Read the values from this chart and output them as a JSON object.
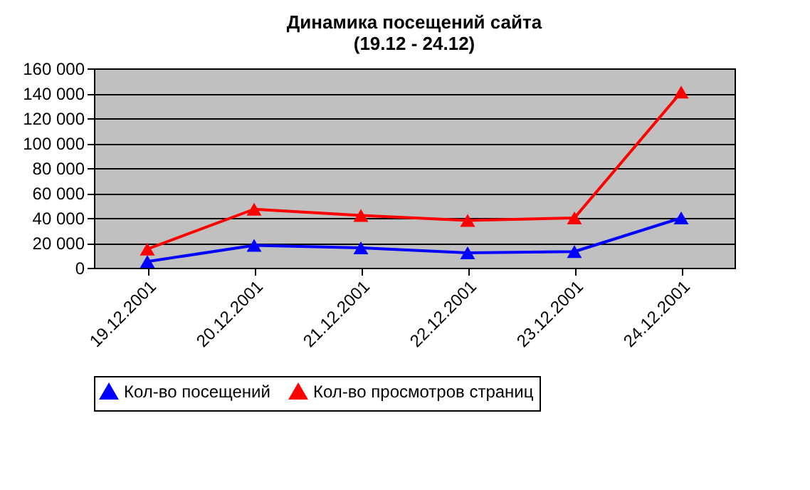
{
  "chart_data": {
    "type": "line",
    "title": [
      "Динамика посещений сайта",
      "(19.12 - 24.12)"
    ],
    "categories": [
      "19.12.2001",
      "20.12.2001",
      "21.12.2001",
      "22.12.2001",
      "23.12.2001",
      "24.12.2001"
    ],
    "series": [
      {
        "name": "Кол-во посещений",
        "color": "#0000ff",
        "values": [
          5000,
          18000,
          16000,
          12000,
          13000,
          40000
        ]
      },
      {
        "name": "Кол-во просмотров страниц",
        "color": "#ff0000",
        "values": [
          15000,
          47000,
          42000,
          38000,
          40000,
          141000
        ]
      }
    ],
    "ylim": [
      0,
      160000
    ],
    "yticks": [
      {
        "value": 0,
        "label": "0"
      },
      {
        "value": 20000,
        "label": "20 000"
      },
      {
        "value": 40000,
        "label": "40 000"
      },
      {
        "value": 60000,
        "label": "60 000"
      },
      {
        "value": 80000,
        "label": "80 000"
      },
      {
        "value": 100000,
        "label": "100 000"
      },
      {
        "value": 120000,
        "label": "120 000"
      },
      {
        "value": 140000,
        "label": "140 000"
      },
      {
        "value": 160000,
        "label": "160 000"
      }
    ],
    "grid": "y",
    "legend": "bottom",
    "marker": "triangle",
    "line_style": "solid"
  }
}
